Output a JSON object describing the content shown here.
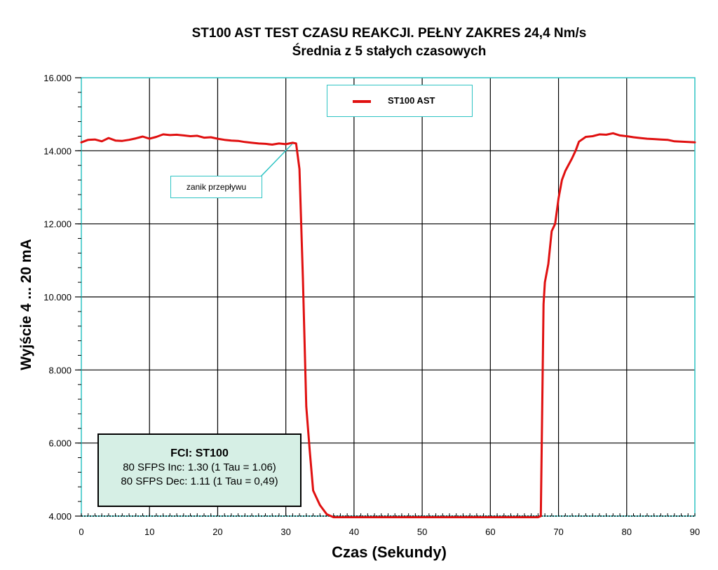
{
  "chart_data": {
    "type": "line",
    "title": "ST100 AST TEST CZASU REAKCJI. PEŁNY ZAKRES 24,4 Nm/s",
    "subtitle": "Średnia z 5 stałych czasowych",
    "xlabel": "Czas (Sekundy)",
    "ylabel": "Wyjście 4 ... 20 mA",
    "xlim": [
      0,
      90
    ],
    "ylim": [
      4,
      16
    ],
    "grid": true,
    "x_ticks": [
      0,
      10,
      20,
      30,
      40,
      50,
      60,
      70,
      80,
      90
    ],
    "y_ticks": [
      4,
      6,
      8,
      10,
      12,
      14,
      16
    ],
    "y_tick_labels": [
      "4.000",
      "6.000",
      "8.000",
      "10.000",
      "12.000",
      "14.000",
      "16.000"
    ],
    "legend_position": "top-center",
    "series": [
      {
        "name": "ST100 AST",
        "color": "#e01010",
        "x": [
          0,
          1,
          2,
          3,
          4,
          5,
          6,
          7,
          8,
          9,
          10,
          11,
          12,
          13,
          14,
          15,
          16,
          17,
          18,
          19,
          20,
          21,
          22,
          23,
          24,
          25,
          26,
          27,
          28,
          29,
          30,
          31,
          31.5,
          32,
          32.5,
          33,
          33.5,
          34,
          34.5,
          35,
          36,
          37,
          38,
          40,
          45,
          50,
          55,
          60,
          65,
          67,
          67.4,
          67.8,
          68,
          68.5,
          69,
          69.5,
          70,
          70.5,
          71,
          72,
          72.5,
          73,
          74,
          75,
          76,
          77,
          78,
          79,
          80,
          81,
          82,
          83,
          84,
          85,
          86,
          87,
          88,
          89,
          90
        ],
        "values": [
          14.23,
          14.3,
          14.31,
          14.26,
          14.35,
          14.28,
          14.27,
          14.3,
          14.34,
          14.39,
          14.33,
          14.38,
          14.45,
          14.43,
          14.44,
          14.42,
          14.4,
          14.41,
          14.36,
          14.37,
          14.33,
          14.3,
          14.28,
          14.27,
          14.24,
          14.22,
          14.2,
          14.19,
          14.17,
          14.2,
          14.18,
          14.22,
          14.2,
          13.5,
          10.5,
          7.0,
          5.8,
          4.7,
          4.5,
          4.3,
          4.05,
          3.97,
          3.97,
          3.97,
          3.97,
          3.97,
          3.97,
          3.97,
          3.97,
          3.97,
          4.0,
          9.8,
          10.4,
          10.9,
          11.8,
          12.0,
          12.7,
          13.2,
          13.45,
          13.8,
          14.0,
          14.25,
          14.38,
          14.4,
          14.45,
          14.44,
          14.48,
          14.42,
          14.4,
          14.37,
          14.35,
          14.33,
          14.32,
          14.31,
          14.3,
          14.26,
          14.25,
          14.24,
          14.23
        ]
      }
    ],
    "annotations": [
      {
        "text": "zanik przepływu",
        "x": 31,
        "y": 14.2
      }
    ],
    "info_box": {
      "heading": "FCI: ST100",
      "line1": "80 SFPS Inc: 1.30 (1 Tau = 1.06)",
      "line2": "80 SFPS Dec: 1.11 (1 Tau = 0,49)"
    }
  }
}
